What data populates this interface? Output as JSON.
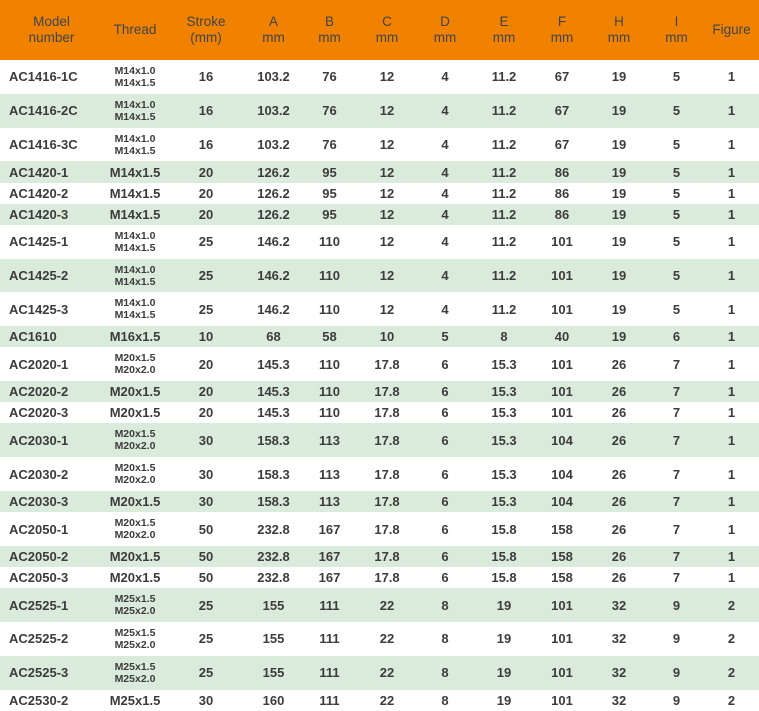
{
  "colors": {
    "header_bg": "#F08200",
    "header_text": "#3D4450",
    "row_bg": "#FFFFFF",
    "row_alt_bg": "#DBEBDB",
    "body_text": "#3C3C3C"
  },
  "table": {
    "headers": [
      {
        "id": "model",
        "lines": [
          "Model",
          "number"
        ]
      },
      {
        "id": "thread",
        "lines": [
          "Thread"
        ]
      },
      {
        "id": "stroke",
        "lines": [
          "Stroke",
          "(mm)"
        ]
      },
      {
        "id": "a",
        "lines": [
          "A",
          "mm"
        ]
      },
      {
        "id": "b",
        "lines": [
          "B",
          "mm"
        ]
      },
      {
        "id": "c",
        "lines": [
          "C",
          "mm"
        ]
      },
      {
        "id": "d",
        "lines": [
          "D",
          "mm"
        ]
      },
      {
        "id": "e",
        "lines": [
          "E",
          "mm"
        ]
      },
      {
        "id": "f",
        "lines": [
          "F",
          "mm"
        ]
      },
      {
        "id": "h",
        "lines": [
          "H",
          "mm"
        ]
      },
      {
        "id": "i",
        "lines": [
          "I",
          "mm"
        ]
      },
      {
        "id": "figure",
        "lines": [
          "Figure"
        ]
      }
    ],
    "rows": [
      {
        "model": "AC1416-1C",
        "thread": [
          "M14x1.0",
          "M14x1.5"
        ],
        "stroke": "16",
        "a": "103.2",
        "b": "76",
        "c": "12",
        "d": "4",
        "e": "11.2",
        "f": "67",
        "h": "19",
        "i": "5",
        "figure": "1"
      },
      {
        "model": "AC1416-2C",
        "thread": [
          "M14x1.0",
          "M14x1.5"
        ],
        "stroke": "16",
        "a": "103.2",
        "b": "76",
        "c": "12",
        "d": "4",
        "e": "11.2",
        "f": "67",
        "h": "19",
        "i": "5",
        "figure": "1"
      },
      {
        "model": "AC1416-3C",
        "thread": [
          "M14x1.0",
          "M14x1.5"
        ],
        "stroke": "16",
        "a": "103.2",
        "b": "76",
        "c": "12",
        "d": "4",
        "e": "11.2",
        "f": "67",
        "h": "19",
        "i": "5",
        "figure": "1"
      },
      {
        "model": "AC1420-1",
        "thread": [
          "M14x1.5"
        ],
        "stroke": "20",
        "a": "126.2",
        "b": "95",
        "c": "12",
        "d": "4",
        "e": "11.2",
        "f": "86",
        "h": "19",
        "i": "5",
        "figure": "1"
      },
      {
        "model": "AC1420-2",
        "thread": [
          "M14x1.5"
        ],
        "stroke": "20",
        "a": "126.2",
        "b": "95",
        "c": "12",
        "d": "4",
        "e": "11.2",
        "f": "86",
        "h": "19",
        "i": "5",
        "figure": "1"
      },
      {
        "model": "AC1420-3",
        "thread": [
          "M14x1.5"
        ],
        "stroke": "20",
        "a": "126.2",
        "b": "95",
        "c": "12",
        "d": "4",
        "e": "11.2",
        "f": "86",
        "h": "19",
        "i": "5",
        "figure": "1"
      },
      {
        "model": "AC1425-1",
        "thread": [
          "M14x1.0",
          "M14x1.5"
        ],
        "stroke": "25",
        "a": "146.2",
        "b": "110",
        "c": "12",
        "d": "4",
        "e": "11.2",
        "f": "101",
        "h": "19",
        "i": "5",
        "figure": "1"
      },
      {
        "model": "AC1425-2",
        "thread": [
          "M14x1.0",
          "M14x1.5"
        ],
        "stroke": "25",
        "a": "146.2",
        "b": "110",
        "c": "12",
        "d": "4",
        "e": "11.2",
        "f": "101",
        "h": "19",
        "i": "5",
        "figure": "1"
      },
      {
        "model": "AC1425-3",
        "thread": [
          "M14x1.0",
          "M14x1.5"
        ],
        "stroke": "25",
        "a": "146.2",
        "b": "110",
        "c": "12",
        "d": "4",
        "e": "11.2",
        "f": "101",
        "h": "19",
        "i": "5",
        "figure": "1"
      },
      {
        "model": "AC1610",
        "thread": [
          "M16x1.5"
        ],
        "stroke": "10",
        "a": "68",
        "b": "58",
        "c": "10",
        "d": "5",
        "e": "8",
        "f": "40",
        "h": "19",
        "i": "6",
        "figure": "1"
      },
      {
        "model": "AC2020-1",
        "thread": [
          "M20x1.5",
          "M20x2.0"
        ],
        "stroke": "20",
        "a": "145.3",
        "b": "110",
        "c": "17.8",
        "d": "6",
        "e": "15.3",
        "f": "101",
        "h": "26",
        "i": "7",
        "figure": "1"
      },
      {
        "model": "AC2020-2",
        "thread": [
          "M20x1.5"
        ],
        "stroke": "20",
        "a": "145.3",
        "b": "110",
        "c": "17.8",
        "d": "6",
        "e": "15.3",
        "f": "101",
        "h": "26",
        "i": "7",
        "figure": "1"
      },
      {
        "model": "AC2020-3",
        "thread": [
          "M20x1.5"
        ],
        "stroke": "20",
        "a": "145.3",
        "b": "110",
        "c": "17.8",
        "d": "6",
        "e": "15.3",
        "f": "101",
        "h": "26",
        "i": "7",
        "figure": "1"
      },
      {
        "model": "AC2030-1",
        "thread": [
          "M20x1.5",
          "M20x2.0"
        ],
        "stroke": "30",
        "a": "158.3",
        "b": "113",
        "c": "17.8",
        "d": "6",
        "e": "15.3",
        "f": "104",
        "h": "26",
        "i": "7",
        "figure": "1"
      },
      {
        "model": "AC2030-2",
        "thread": [
          "M20x1.5",
          "M20x2.0"
        ],
        "stroke": "30",
        "a": "158.3",
        "b": "113",
        "c": "17.8",
        "d": "6",
        "e": "15.3",
        "f": "104",
        "h": "26",
        "i": "7",
        "figure": "1"
      },
      {
        "model": "AC2030-3",
        "thread": [
          "M20x1.5"
        ],
        "stroke": "30",
        "a": "158.3",
        "b": "113",
        "c": "17.8",
        "d": "6",
        "e": "15.3",
        "f": "104",
        "h": "26",
        "i": "7",
        "figure": "1"
      },
      {
        "model": "AC2050-1",
        "thread": [
          "M20x1.5",
          "M20x2.0"
        ],
        "stroke": "50",
        "a": "232.8",
        "b": "167",
        "c": "17.8",
        "d": "6",
        "e": "15.8",
        "f": "158",
        "h": "26",
        "i": "7",
        "figure": "1"
      },
      {
        "model": "AC2050-2",
        "thread": [
          "M20x1.5"
        ],
        "stroke": "50",
        "a": "232.8",
        "b": "167",
        "c": "17.8",
        "d": "6",
        "e": "15.8",
        "f": "158",
        "h": "26",
        "i": "7",
        "figure": "1"
      },
      {
        "model": "AC2050-3",
        "thread": [
          "M20x1.5"
        ],
        "stroke": "50",
        "a": "232.8",
        "b": "167",
        "c": "17.8",
        "d": "6",
        "e": "15.8",
        "f": "158",
        "h": "26",
        "i": "7",
        "figure": "1"
      },
      {
        "model": "AC2525-1",
        "thread": [
          "M25x1.5",
          "M25x2.0"
        ],
        "stroke": "25",
        "a": "155",
        "b": "111",
        "c": "22",
        "d": "8",
        "e": "19",
        "f": "101",
        "h": "32",
        "i": "9",
        "figure": "2"
      },
      {
        "model": "AC2525-2",
        "thread": [
          "M25x1.5",
          "M25x2.0"
        ],
        "stroke": "25",
        "a": "155",
        "b": "111",
        "c": "22",
        "d": "8",
        "e": "19",
        "f": "101",
        "h": "32",
        "i": "9",
        "figure": "2"
      },
      {
        "model": "AC2525-3",
        "thread": [
          "M25x1.5",
          "M25x2.0"
        ],
        "stroke": "25",
        "a": "155",
        "b": "111",
        "c": "22",
        "d": "8",
        "e": "19",
        "f": "101",
        "h": "32",
        "i": "9",
        "figure": "2"
      },
      {
        "model": "AC2530-2",
        "thread": [
          "M25x1.5"
        ],
        "stroke": "30",
        "a": "160",
        "b": "111",
        "c": "22",
        "d": "8",
        "e": "19",
        "f": "101",
        "h": "32",
        "i": "9",
        "figure": "2"
      }
    ]
  }
}
